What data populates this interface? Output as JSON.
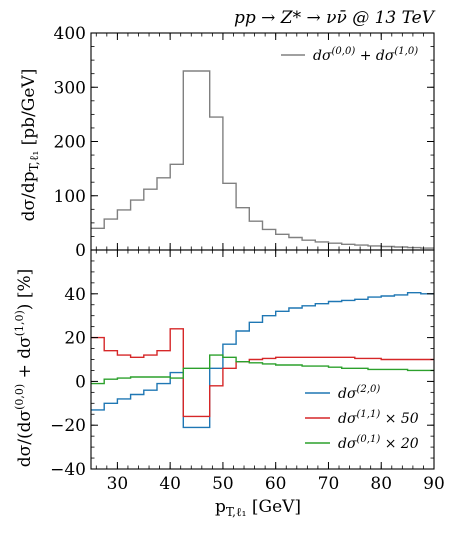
{
  "chart_data": [
    {
      "type": "line",
      "title": "pp → Z* → νν̄ @ 13 TeV",
      "xlabel": "",
      "ylabel": "dσ/dp_{T,ℓ₁} [pb/GeV]",
      "xlim": [
        25,
        90
      ],
      "ylim": [
        0,
        400
      ],
      "yticks": [
        "0",
        "100",
        "200",
        "300",
        "400"
      ],
      "grid": false,
      "legend_position": "top-right",
      "drawstyle": "steps",
      "bin_edges": [
        25,
        27.5,
        30,
        32.5,
        35,
        37.5,
        40,
        42.5,
        45,
        47.5,
        50,
        52.5,
        55,
        57.5,
        60,
        62.5,
        65,
        67.5,
        70,
        72.5,
        75,
        77.5,
        80,
        82.5,
        85,
        87.5,
        90
      ],
      "series": [
        {
          "name": "dσ^(0,0) + dσ^(1,0)",
          "color": "#808080",
          "values": [
            40,
            57,
            74,
            92,
            112,
            133,
            158,
            330,
            330,
            245,
            123,
            78,
            53,
            38,
            29,
            23,
            18,
            15,
            12.5,
            10.5,
            9,
            7.5,
            6.5,
            5.5,
            4.5,
            3.5
          ]
        }
      ]
    },
    {
      "type": "line",
      "title": "",
      "xlabel": "p_{T,ℓ₁} [GeV]",
      "ylabel": "dσ/(dσ^(0,0) + dσ^(1,0)) [%]",
      "xlim": [
        25,
        90
      ],
      "ylim": [
        -40,
        60
      ],
      "yticks": [
        "−40",
        "−20",
        "0",
        "20",
        "40"
      ],
      "xticks": [
        "30",
        "40",
        "50",
        "60",
        "70",
        "80",
        "90"
      ],
      "grid": false,
      "legend_position": "bottom-right",
      "drawstyle": "steps",
      "bin_edges": [
        25,
        27.5,
        30,
        32.5,
        35,
        37.5,
        40,
        42.5,
        45,
        47.5,
        50,
        52.5,
        55,
        57.5,
        60,
        62.5,
        65,
        67.5,
        70,
        72.5,
        75,
        77.5,
        80,
        82.5,
        85,
        87.5,
        90
      ],
      "series": [
        {
          "name": "dσ^(2,0)",
          "color": "#1f77b4",
          "values": [
            -13,
            -10,
            -8,
            -6,
            -4,
            -1,
            4,
            -21,
            -21,
            6,
            17,
            23,
            27,
            30,
            32,
            33.5,
            34.5,
            35.5,
            36.5,
            37,
            37.5,
            38.5,
            39,
            39.5,
            40.5,
            40
          ]
        },
        {
          "name": "dσ^(1,1) × 50",
          "color": "#d62728",
          "values": [
            20,
            14,
            12,
            11,
            12,
            14,
            24,
            -16,
            -16,
            -2,
            6,
            9,
            10,
            10.5,
            11,
            11,
            11,
            11,
            11,
            11,
            10.5,
            10.5,
            10,
            10,
            10,
            10
          ]
        },
        {
          "name": "dσ^(0,1) × 20",
          "color": "#2ca02c",
          "values": [
            -1,
            1,
            1.5,
            2,
            2,
            2,
            1.5,
            6,
            6,
            12,
            11,
            9,
            8.5,
            8,
            7.5,
            7.5,
            7,
            7,
            6.5,
            6,
            6,
            5.5,
            5.5,
            5.5,
            5,
            5
          ]
        }
      ]
    }
  ]
}
